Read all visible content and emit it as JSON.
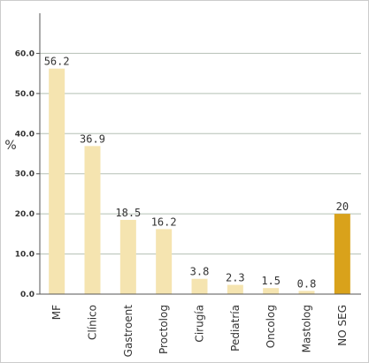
{
  "chart_data": {
    "type": "bar",
    "title": "",
    "xlabel": "",
    "ylabel": "%",
    "ylim": [
      0,
      70
    ],
    "yticks": [
      "0.0",
      "10.0",
      "20.0",
      "30.0",
      "40.0",
      "50.0",
      "60.0"
    ],
    "categories": [
      "MF",
      "Clínico",
      "Gastroent",
      "Proctolog",
      "Cirugía",
      "Pediatría",
      "Oncolog",
      "Mastolog",
      "NO SEG"
    ],
    "values": [
      56.2,
      36.9,
      18.5,
      16.2,
      3.8,
      2.3,
      1.5,
      0.8,
      20
    ],
    "value_labels": [
      "56.2",
      "36.9",
      "18.5",
      "16.2",
      "3.8",
      "2.3",
      "1.5",
      "0.8",
      "20"
    ],
    "highlight_index": 8,
    "grid": true,
    "legend": "none",
    "colors": {
      "bar": "#f5e4b0",
      "highlight": "#d9a21b",
      "grid": "#b5c0b5",
      "axis": "#555555"
    }
  }
}
